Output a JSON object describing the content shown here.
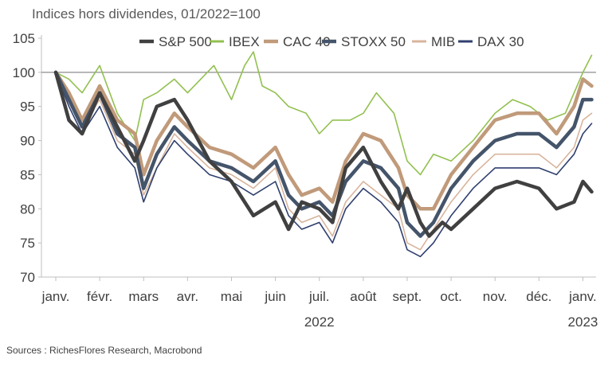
{
  "title": "Indices hors dividendes, 01/2022=100",
  "source": "Sources : RichesFlores Research, Macrobond",
  "chart_data": {
    "type": "line",
    "ylim": [
      70,
      105
    ],
    "yticks": [
      70,
      75,
      80,
      85,
      90,
      95,
      100,
      105
    ],
    "x_months": [
      "janv.",
      "févr.",
      "mars",
      "avr.",
      "mai",
      "juin",
      "juil.",
      "août",
      "sept.",
      "oct.",
      "nov.",
      "déc.",
      "janv."
    ],
    "x_years": [
      {
        "label": "2022",
        "month_index": 6
      },
      {
        "label": "2023",
        "month_index": 12
      }
    ],
    "reference_line": 100,
    "legend_position": "top",
    "series": [
      {
        "name": "S&P 500",
        "color": "#404040",
        "width": 4.5,
        "x": [
          0.0,
          0.3,
          0.6,
          1.0,
          1.4,
          1.8,
          2.0,
          2.3,
          2.7,
          3.0,
          3.5,
          4.0,
          4.5,
          5.0,
          5.3,
          5.6,
          6.0,
          6.3,
          6.6,
          7.0,
          7.4,
          7.8,
          8.0,
          8.3,
          8.5,
          8.8,
          9.0,
          9.5,
          10.0,
          10.5,
          11.0,
          11.4,
          11.8,
          12.0,
          12.2
        ],
        "values": [
          100,
          93,
          91,
          97,
          92,
          87,
          90,
          95,
          96,
          93,
          87,
          84,
          79,
          81,
          77,
          81,
          80,
          78,
          86,
          89,
          84,
          80,
          83,
          78,
          76,
          78,
          77,
          80,
          83,
          84,
          83,
          80,
          81,
          84,
          82.5
        ]
      },
      {
        "name": "IBEX",
        "color": "#92c050",
        "width": 1.6,
        "x": [
          0.0,
          0.3,
          0.6,
          1.0,
          1.4,
          1.8,
          2.0,
          2.3,
          2.7,
          3.0,
          3.3,
          3.6,
          4.0,
          4.3,
          4.5,
          4.7,
          5.0,
          5.3,
          5.7,
          6.0,
          6.3,
          6.7,
          7.0,
          7.3,
          7.7,
          8.0,
          8.3,
          8.6,
          9.0,
          9.5,
          10.0,
          10.4,
          10.8,
          11.2,
          11.6,
          12.0,
          12.2
        ],
        "values": [
          100,
          99,
          97,
          101,
          94,
          90,
          96,
          97,
          99,
          97,
          99,
          101,
          96,
          101,
          103,
          98,
          97,
          95,
          94,
          91,
          93,
          93,
          94,
          97,
          94,
          87,
          85,
          88,
          87,
          90,
          94,
          96,
          95,
          93,
          94,
          100,
          102.5
        ]
      },
      {
        "name": "CAC 40",
        "color": "#c09a7a",
        "width": 4.5,
        "x": [
          0.0,
          0.3,
          0.6,
          1.0,
          1.4,
          1.8,
          2.0,
          2.3,
          2.7,
          3.0,
          3.5,
          4.0,
          4.5,
          5.0,
          5.3,
          5.6,
          6.0,
          6.3,
          6.6,
          7.0,
          7.4,
          7.8,
          8.0,
          8.3,
          8.6,
          9.0,
          9.5,
          10.0,
          10.5,
          11.0,
          11.4,
          11.8,
          12.0,
          12.2
        ],
        "values": [
          100,
          97,
          93,
          98,
          93,
          91,
          85,
          90,
          94,
          92,
          89,
          88,
          86,
          89,
          85,
          82,
          83,
          81,
          87,
          91,
          90,
          86,
          82,
          80,
          80,
          85,
          89,
          93,
          94,
          94,
          91,
          95,
          99,
          98
        ]
      },
      {
        "name": "STOXX 50",
        "color": "#44546a",
        "width": 4.5,
        "x": [
          0.0,
          0.3,
          0.6,
          1.0,
          1.4,
          1.8,
          2.0,
          2.3,
          2.7,
          3.0,
          3.5,
          4.0,
          4.5,
          5.0,
          5.3,
          5.6,
          6.0,
          6.3,
          6.6,
          7.0,
          7.4,
          7.8,
          8.0,
          8.3,
          8.6,
          9.0,
          9.5,
          10.0,
          10.5,
          11.0,
          11.4,
          11.8,
          12.0,
          12.2
        ],
        "values": [
          100,
          96,
          92,
          97,
          91,
          89,
          83,
          88,
          92,
          90,
          87,
          86,
          84,
          87,
          82,
          80,
          81,
          79,
          84,
          87,
          86,
          83,
          78,
          76,
          78,
          83,
          87,
          90,
          91,
          91,
          89,
          92,
          96,
          96
        ]
      },
      {
        "name": "MIB",
        "color": "#d8b49c",
        "width": 1.6,
        "x": [
          0.0,
          0.3,
          0.6,
          1.0,
          1.4,
          1.8,
          2.0,
          2.3,
          2.7,
          3.0,
          3.5,
          4.0,
          4.5,
          5.0,
          5.3,
          5.6,
          6.0,
          6.3,
          6.6,
          7.0,
          7.4,
          7.8,
          8.0,
          8.3,
          8.6,
          9.0,
          9.5,
          10.0,
          10.5,
          11.0,
          11.4,
          11.8,
          12.0,
          12.2
        ],
        "values": [
          100,
          96,
          92,
          96,
          90,
          88,
          82,
          86,
          91,
          89,
          86,
          85,
          83,
          86,
          80,
          78,
          79,
          76,
          81,
          84,
          82,
          80,
          75,
          74,
          77,
          81,
          85,
          88,
          88,
          88,
          86,
          89,
          93,
          94
        ]
      },
      {
        "name": "DAX 30",
        "color": "#2f3f6e",
        "width": 1.6,
        "x": [
          0.0,
          0.3,
          0.6,
          1.0,
          1.4,
          1.8,
          2.0,
          2.3,
          2.7,
          3.0,
          3.5,
          4.0,
          4.5,
          5.0,
          5.3,
          5.6,
          6.0,
          6.3,
          6.6,
          7.0,
          7.4,
          7.8,
          8.0,
          8.3,
          8.6,
          9.0,
          9.5,
          10.0,
          10.5,
          11.0,
          11.4,
          11.8,
          12.0,
          12.2
        ],
        "values": [
          100,
          95,
          91,
          95,
          89,
          86,
          81,
          86,
          90,
          88,
          85,
          84,
          82,
          84,
          79,
          77,
          78,
          75,
          80,
          83,
          81,
          78,
          74,
          73,
          75,
          79,
          83,
          86,
          86,
          86,
          85,
          88,
          91,
          92.5
        ]
      }
    ]
  }
}
